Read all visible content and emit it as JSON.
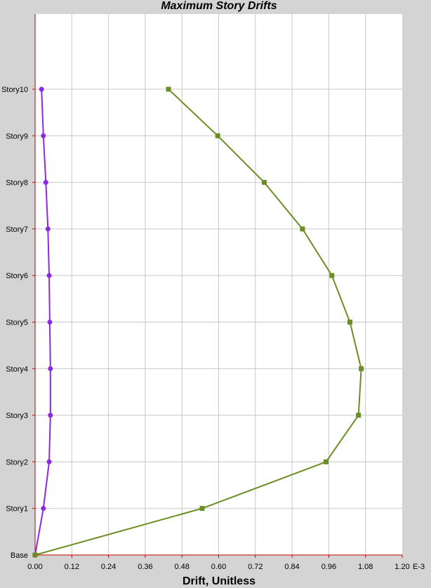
{
  "chart_data": {
    "type": "line",
    "title": "Maximum Story Drifts",
    "xlabel": "Drift, Unitless",
    "x_unit_suffix": "E-3",
    "xlim": [
      0,
      1.2
    ],
    "x_ticks": [
      "0.00",
      "0.12",
      "0.24",
      "0.36",
      "0.48",
      "0.60",
      "0.72",
      "0.84",
      "0.96",
      "1.08",
      "1.20"
    ],
    "categories": [
      "Base",
      "Story1",
      "Story2",
      "Story3",
      "Story4",
      "Story5",
      "Story6",
      "Story7",
      "Story8",
      "Story9",
      "Story10"
    ],
    "grid": true,
    "series": [
      {
        "color": "#8a2be2",
        "marker": "circle",
        "values": [
          0.0,
          0.027,
          0.046,
          0.05,
          0.05,
          0.048,
          0.046,
          0.042,
          0.035,
          0.027,
          0.021
        ]
      },
      {
        "color": "#6b8e23",
        "marker": "square",
        "values": [
          0.0,
          0.546,
          0.951,
          1.057,
          1.066,
          1.029,
          0.97,
          0.874,
          0.749,
          0.597,
          0.436
        ]
      }
    ]
  }
}
